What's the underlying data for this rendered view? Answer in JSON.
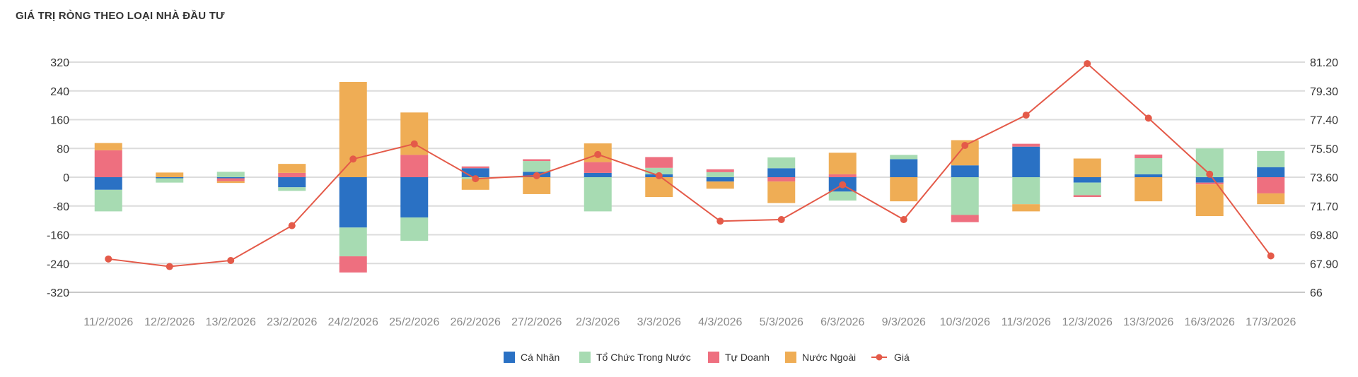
{
  "title": "GIÁ TRỊ RÒNG THEO LOẠI NHÀ ĐẦU TƯ",
  "chart_data": {
    "type": "bar",
    "stacked": true,
    "title": "GIÁ TRỊ RÒNG THEO LOẠI NHÀ ĐẦU TƯ",
    "categories": [
      "11/2/2026",
      "12/2/2026",
      "13/2/2026",
      "23/2/2026",
      "24/2/2026",
      "25/2/2026",
      "26/2/2026",
      "27/2/2026",
      "2/3/2026",
      "3/3/2026",
      "4/3/2026",
      "5/3/2026",
      "6/3/2026",
      "9/3/2026",
      "10/3/2026",
      "11/3/2026",
      "12/3/2026",
      "13/3/2026",
      "16/3/2026",
      "17/3/2026"
    ],
    "y_left": {
      "ticks": [
        "320",
        "240",
        "160",
        "80",
        "0",
        "-80",
        "-160",
        "-240",
        "-320"
      ],
      "range": [
        -320,
        320
      ]
    },
    "y_right": {
      "ticks": [
        "81.20",
        "79.30",
        "77.40",
        "75.50",
        "73.60",
        "71.70",
        "69.80",
        "67.90",
        "66"
      ],
      "range": [
        66,
        81.2
      ]
    },
    "grid": true,
    "legend_position": "bottom-center",
    "series": [
      {
        "name": "Cá Nhân",
        "color": "#2a71c4",
        "kind": "bar",
        "values": [
          -35,
          -3,
          -3,
          -28,
          -140,
          -112,
          25,
          15,
          12,
          8,
          -12,
          25,
          -40,
          50,
          33,
          85,
          -15,
          8,
          -15,
          28
        ]
      },
      {
        "name": "Tổ Chức Trong Nước",
        "color": "#a7dbb2",
        "kind": "bar",
        "values": [
          -60,
          -12,
          15,
          -10,
          -80,
          -65,
          -5,
          30,
          -95,
          18,
          14,
          30,
          -25,
          12,
          -105,
          -75,
          -35,
          45,
          80,
          45
        ]
      },
      {
        "name": "Tự Doanh",
        "color": "#ee6f7f",
        "kind": "bar",
        "values": [
          75,
          0,
          -8,
          12,
          -45,
          62,
          5,
          5,
          30,
          30,
          8,
          -12,
          8,
          0,
          -20,
          8,
          -5,
          10,
          -5,
          -45
        ]
      },
      {
        "name": "Nước Ngoài",
        "color": "#efad55",
        "kind": "bar",
        "values": [
          20,
          13,
          -5,
          25,
          265,
          118,
          -30,
          -47,
          52,
          -55,
          -20,
          -60,
          60,
          -67,
          70,
          -20,
          52,
          -67,
          -88,
          -30
        ]
      },
      {
        "name": "Giá",
        "color": "#e45a49",
        "kind": "line",
        "axis": "right",
        "values": [
          68.2,
          67.7,
          68.1,
          70.4,
          74.8,
          75.8,
          73.5,
          73.7,
          75.1,
          73.7,
          70.7,
          70.8,
          73.1,
          70.8,
          75.7,
          77.7,
          81.1,
          77.5,
          73.8,
          68.4
        ]
      }
    ]
  }
}
